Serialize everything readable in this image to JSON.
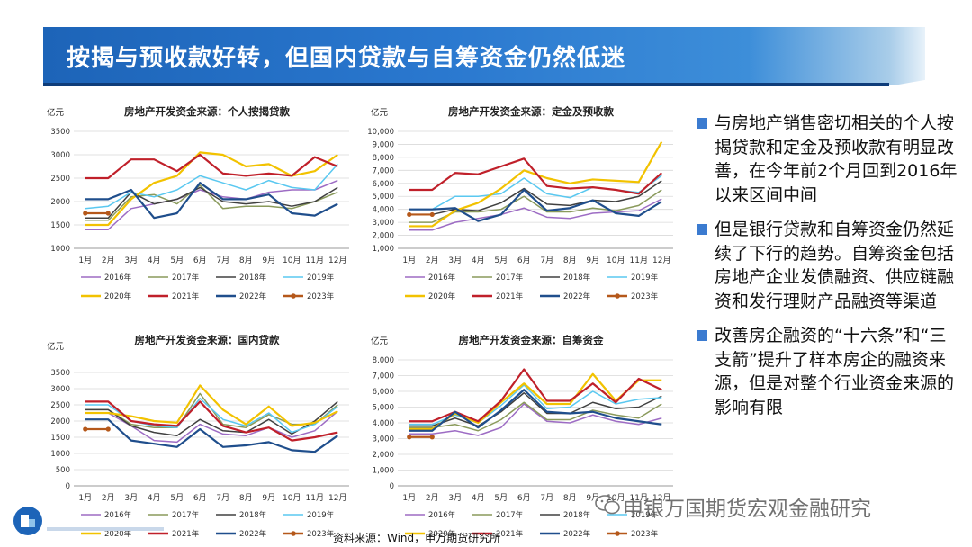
{
  "page_title": "按揭与预收款好转，但国内贷款与自筹资金仍然低迷",
  "bullets": [
    "与房地产销售密切相关的个人按揭贷款和定金及预收款有明显改善，在今年前2个月回到2016年以来区间中间",
    "但是银行贷款和自筹资金仍然延续了下行的趋势。自筹资金包括房地产企业发债融资、供应链融资和发行理财产品融资等渠道",
    "改善房企融资的“十六条”和“三支箭”提升了样本房企的融资来源，但是对整个行业资金来源的影响有限"
  ],
  "source_note": "资料来源：Wind，申万期货研究所",
  "watermark": "申银万国期货宏观金融研究",
  "colors": {
    "title_bar": "#2a78cf",
    "bullet_mark": "#3b7bd0"
  },
  "legend_names": [
    "2016年",
    "2017年",
    "2018年",
    "2019年",
    "2020年",
    "2021年",
    "2022年",
    "2023年"
  ],
  "legend_colors": [
    "#9d6cc4",
    "#8a9a5b",
    "#404040",
    "#5ac8f0",
    "#f2c200",
    "#c0202a",
    "#1f4e8c",
    "#b5581a"
  ],
  "chart_data": [
    {
      "type": "line",
      "title": "房地产开发资金来源：个人按揭贷款",
      "ylabel": "亿元",
      "categories": [
        "1月",
        "2月",
        "3月",
        "4月",
        "5月",
        "6月",
        "7月",
        "8月",
        "9月",
        "10月",
        "11月",
        "12月"
      ],
      "ylim": [
        1000,
        3500
      ],
      "yticks": [
        1000,
        1500,
        2000,
        2500,
        3000,
        3500
      ],
      "ytick_labels": [
        "1000",
        "1500",
        "2000",
        "2500",
        "3000",
        "3500"
      ],
      "series": [
        {
          "name": "2016年",
          "values": [
            1400,
            1400,
            1850,
            1950,
            2050,
            2250,
            2100,
            2050,
            2200,
            2250,
            2250,
            2450
          ]
        },
        {
          "name": "2017年",
          "values": [
            1600,
            1600,
            2100,
            2150,
            1950,
            2350,
            1850,
            1900,
            1900,
            1850,
            2000,
            2200
          ]
        },
        {
          "name": "2018年",
          "values": [
            1650,
            1650,
            2200,
            1950,
            2050,
            2300,
            2000,
            1950,
            2000,
            1900,
            2000,
            2300
          ]
        },
        {
          "name": "2019年",
          "values": [
            1850,
            1900,
            2200,
            2100,
            2250,
            2550,
            2400,
            2250,
            2450,
            2300,
            2250,
            2800
          ]
        },
        {
          "name": "2020年",
          "values": [
            1500,
            1500,
            2050,
            2400,
            2550,
            3050,
            3000,
            2750,
            2800,
            2550,
            2650,
            3000
          ]
        },
        {
          "name": "2021年",
          "values": [
            2500,
            2500,
            2900,
            2900,
            2650,
            3000,
            2600,
            2550,
            2600,
            2550,
            2950,
            2750
          ]
        },
        {
          "name": "2022年",
          "values": [
            2050,
            2050,
            2250,
            1650,
            1750,
            2400,
            2050,
            2050,
            2150,
            1750,
            1700,
            1950
          ]
        },
        {
          "name": "2023年",
          "values": [
            1750,
            1750,
            null,
            null,
            null,
            null,
            null,
            null,
            null,
            null,
            null,
            null
          ]
        }
      ]
    },
    {
      "type": "line",
      "title": "房地产开发资金来源：定金及预收款",
      "ylabel": "亿元",
      "categories": [
        "1月",
        "2月",
        "3月",
        "4月",
        "5月",
        "6月",
        "7月",
        "8月",
        "9月",
        "10月",
        "11月",
        "12月"
      ],
      "ylim": [
        1000,
        10000
      ],
      "yticks": [
        1000,
        2000,
        3000,
        4000,
        5000,
        6000,
        7000,
        8000,
        9000,
        10000
      ],
      "ytick_labels": [
        "1,000",
        "2,000",
        "3,000",
        "4,000",
        "5,000",
        "6,000",
        "7,000",
        "8,000",
        "9,000",
        "10,000"
      ],
      "series": [
        {
          "name": "2016年",
          "values": [
            2400,
            2400,
            3000,
            3300,
            3600,
            4100,
            3400,
            3300,
            3700,
            3800,
            3900,
            4800
          ]
        },
        {
          "name": "2017年",
          "values": [
            3000,
            3000,
            3800,
            3800,
            4000,
            5000,
            3800,
            3800,
            4100,
            3900,
            4300,
            5500
          ]
        },
        {
          "name": "2018年",
          "values": [
            3600,
            3600,
            4000,
            3900,
            4500,
            5600,
            4400,
            4300,
            4700,
            4600,
            5000,
            6200
          ]
        },
        {
          "name": "2019年",
          "values": [
            4000,
            4000,
            5000,
            5000,
            5200,
            6400,
            5200,
            4900,
            5700,
            5500,
            5300,
            6600
          ]
        },
        {
          "name": "2020年",
          "values": [
            2700,
            2700,
            3900,
            4500,
            5600,
            7000,
            6400,
            6000,
            6300,
            6200,
            6100,
            9200
          ]
        },
        {
          "name": "2021年",
          "values": [
            5500,
            5500,
            6800,
            6700,
            7300,
            7900,
            5800,
            5600,
            5700,
            5500,
            5200,
            6800
          ]
        },
        {
          "name": "2022年",
          "values": [
            4000,
            4000,
            4100,
            3100,
            3600,
            5500,
            3900,
            4100,
            4700,
            3700,
            3500,
            4600
          ]
        },
        {
          "name": "2023年",
          "values": [
            3600,
            3600,
            null,
            null,
            null,
            null,
            null,
            null,
            null,
            null,
            null,
            null
          ]
        }
      ]
    },
    {
      "type": "line",
      "title": "房地产开发资金来源：国内贷款",
      "ylabel": "亿元",
      "categories": [
        "1月",
        "2月",
        "3月",
        "4月",
        "5月",
        "6月",
        "7月",
        "8月",
        "9月",
        "10月",
        "11月",
        "12月"
      ],
      "ylim": [
        0,
        3500
      ],
      "yticks": [
        0,
        500,
        1000,
        1500,
        2000,
        2500,
        3000,
        3500
      ],
      "ytick_labels": [
        "0",
        "500",
        "1000",
        "1500",
        "2000",
        "2500",
        "3000",
        "3500"
      ],
      "series": [
        {
          "name": "2016年",
          "values": [
            2250,
            2250,
            1850,
            1400,
            1350,
            1900,
            1600,
            1550,
            1800,
            1500,
            1700,
            2300
          ]
        },
        {
          "name": "2017年",
          "values": [
            2350,
            2350,
            1900,
            1800,
            1800,
            2850,
            1900,
            1800,
            2200,
            1900,
            1900,
            2500
          ]
        },
        {
          "name": "2018年",
          "values": [
            2350,
            2350,
            1850,
            1650,
            1550,
            2050,
            1700,
            1650,
            2050,
            1600,
            2000,
            2600
          ]
        },
        {
          "name": "2019年",
          "values": [
            2500,
            2500,
            2000,
            1850,
            1800,
            2700,
            2050,
            1850,
            2250,
            1650,
            1900,
            2450
          ]
        },
        {
          "name": "2020年",
          "values": [
            2250,
            2250,
            2150,
            2000,
            1950,
            3100,
            2350,
            1900,
            2450,
            1850,
            1950,
            2300
          ]
        },
        {
          "name": "2021年",
          "values": [
            2600,
            2600,
            2000,
            1900,
            1850,
            2600,
            1850,
            1650,
            1800,
            1400,
            1500,
            1650
          ]
        },
        {
          "name": "2022年",
          "values": [
            2050,
            2050,
            1400,
            1300,
            1200,
            1750,
            1200,
            1250,
            1350,
            1100,
            1050,
            1550
          ]
        },
        {
          "name": "2023年",
          "values": [
            1750,
            1750,
            null,
            null,
            null,
            null,
            null,
            null,
            null,
            null,
            null,
            null
          ]
        }
      ]
    },
    {
      "type": "line",
      "title": "房地产开发资金来源：自筹资金",
      "ylabel": "亿元",
      "categories": [
        "1月",
        "2月",
        "3月",
        "4月",
        "5月",
        "6月",
        "7月",
        "8月",
        "9月",
        "10月",
        "11月",
        "12月"
      ],
      "ylim": [
        0,
        8000
      ],
      "yticks": [
        0,
        1000,
        2000,
        3000,
        4000,
        5000,
        6000,
        7000,
        8000
      ],
      "ytick_labels": [
        "0",
        "1,000",
        "2,000",
        "3,000",
        "4,000",
        "5,000",
        "6,000",
        "7,000",
        "8,000"
      ],
      "series": [
        {
          "name": "2016年",
          "values": [
            3300,
            3300,
            3500,
            3200,
            3700,
            5200,
            4100,
            4000,
            4500,
            4100,
            3900,
            4300
          ]
        },
        {
          "name": "2017年",
          "values": [
            3700,
            3700,
            3900,
            3500,
            4200,
            5300,
            4200,
            4200,
            4800,
            4500,
            4300,
            5200
          ]
        },
        {
          "name": "2018年",
          "values": [
            3800,
            3800,
            4300,
            3800,
            4700,
            5900,
            4600,
            4600,
            5300,
            4900,
            5000,
            5700
          ]
        },
        {
          "name": "2019年",
          "values": [
            3900,
            3900,
            4500,
            4000,
            5100,
            6400,
            4900,
            5000,
            6000,
            5200,
            5500,
            5600
          ]
        },
        {
          "name": "2020年",
          "values": [
            3600,
            3600,
            4600,
            4000,
            5300,
            6500,
            5200,
            5200,
            7100,
            5400,
            6700,
            6700
          ]
        },
        {
          "name": "2021年",
          "values": [
            4100,
            4100,
            4700,
            4100,
            5400,
            7400,
            5400,
            5400,
            6500,
            5300,
            6800,
            6100
          ]
        },
        {
          "name": "2022年",
          "values": [
            3500,
            3500,
            4700,
            3700,
            4800,
            6100,
            4700,
            4600,
            4700,
            4300,
            4100,
            3900
          ]
        },
        {
          "name": "2023年",
          "values": [
            3100,
            3100,
            null,
            null,
            null,
            null,
            null,
            null,
            null,
            null,
            null,
            null
          ]
        }
      ]
    }
  ]
}
